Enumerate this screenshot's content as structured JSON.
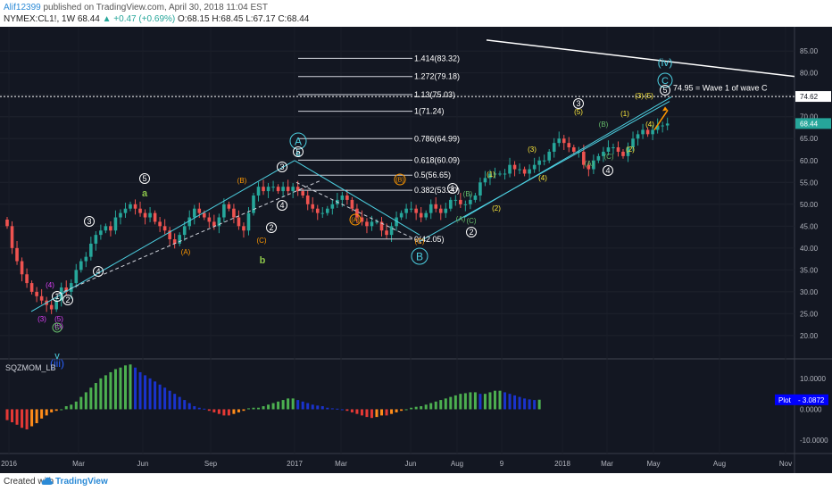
{
  "header": {
    "user": "Alif12399",
    "published_text": "published on TradingView.com, April 30, 2018 11:04 EST",
    "symbol": "NYMEX:CL1!, 1W",
    "last": "68.44",
    "change": "▲ +0.47 (+0.69%)",
    "ohlc": "O:68.15 H:68.45 L:67.17 C:68.44"
  },
  "footer": {
    "created_with": "Created with",
    "brand": "TradingView"
  },
  "colors": {
    "bg": "#131722",
    "up": "#26a69a",
    "down": "#ef5350",
    "cyan": "#4dd0e1",
    "yellow": "#ffeb3b",
    "orange": "#ff9800",
    "pink": "#e040fb",
    "green": "#66bb6a",
    "mom_lime": "#4caf50",
    "mom_green": "#1b5e20",
    "mom_red": "#e53935",
    "mom_maroon": "#8b1a1a",
    "mom_blue": "#1a33cc",
    "mom_orange": "#ff8c1a"
  },
  "chart_data": {
    "type": "candlestick",
    "price_axis": {
      "ticks": [
        "85.00",
        "80.00",
        "75.00",
        "70.00",
        "65.00",
        "60.00",
        "55.00",
        "50.00",
        "45.00",
        "40.00",
        "35.00",
        "30.00",
        "25.00",
        "20.00"
      ],
      "range": [
        15.5,
        88.5
      ]
    },
    "time_axis": {
      "labels": [
        "2016",
        "Mar",
        "Jun",
        "Sep",
        "2017",
        "Mar",
        "Jun",
        "Aug",
        "9",
        "2018",
        "Mar",
        "May",
        "Aug",
        "Nov"
      ]
    },
    "last_price_label": "68.44",
    "level_label": "74.62",
    "annotation": "74.95 = Wave 1 of wave C",
    "fib_levels": [
      {
        "label": "1.414(83.32)",
        "price": 83.32
      },
      {
        "label": "1.272(79.18)",
        "price": 79.18
      },
      {
        "label": "1.13(75.03)",
        "price": 75.03
      },
      {
        "label": "1(71.24)",
        "price": 71.24
      },
      {
        "label": "0.786(64.99)",
        "price": 64.99
      },
      {
        "label": "0.618(60.09)",
        "price": 60.09
      },
      {
        "label": "0.5(56.65)",
        "price": 56.65
      },
      {
        "label": "0.382(53.20)",
        "price": 53.2
      },
      {
        "label": "0(42.05)",
        "price": 42.05
      }
    ],
    "wave_labels": {
      "iii": "(iii)",
      "iv": "(iv)",
      "v": "v",
      "A": "A",
      "B": "B",
      "C": "C",
      "a": "a",
      "b": "b",
      "c": "c",
      "1": "1",
      "2": "2",
      "3": "3",
      "4": "4",
      "5": "5",
      "p1": "(1)",
      "p2": "(2)",
      "p3": "(3)",
      "p4": "(4)",
      "p5": "(5)",
      "pA": "(A)",
      "pB": "(B)",
      "pC": "(C)"
    },
    "indicator": {
      "name": "SQZMOM_LB",
      "ticks": [
        "10.0000",
        "0.0000",
        "-10.0000"
      ],
      "plot_label": "Plot",
      "plot_value": "3.0872",
      "range": [
        -12,
        14
      ],
      "values": [
        -3.5,
        -4.2,
        -5,
        -6,
        -6.5,
        -5.5,
        -4.5,
        -3,
        -2,
        -1,
        -0.5,
        0,
        1,
        1.5,
        2.5,
        4,
        5.5,
        7,
        8.5,
        10,
        11,
        12,
        13,
        13.5,
        14.2,
        14.5,
        13.5,
        12,
        11,
        10,
        9,
        8,
        7,
        6,
        5,
        4,
        3,
        2,
        1,
        0.5,
        0.2,
        -0.5,
        -1,
        -1.5,
        -2,
        -2,
        -1.5,
        -1,
        -0.5,
        0.3,
        0.5,
        0.5,
        1,
        1.5,
        2,
        2.5,
        3,
        3.5,
        3.5,
        3,
        2.5,
        2,
        1.5,
        1.2,
        1,
        0.5,
        0.3,
        0.2,
        0,
        -0.5,
        -1,
        -1.5,
        -2,
        -2.5,
        -2.8,
        -2.5,
        -2,
        -2,
        -1.5,
        -1,
        -0.5,
        0,
        0.5,
        0.8,
        1,
        1.5,
        2,
        2.5,
        3,
        3.5,
        4,
        4.5,
        5,
        5.2,
        5.5,
        5.5,
        5,
        5,
        5.5,
        6,
        6,
        5.5,
        5,
        4.5,
        4,
        3.5,
        3.2,
        3,
        3.1
      ]
    },
    "weekly_closes": [
      45,
      40,
      37,
      34,
      32,
      30,
      29,
      28,
      27,
      26,
      28,
      31,
      30,
      32,
      35,
      37,
      38,
      41,
      43,
      44,
      45,
      44,
      47,
      48,
      49,
      50,
      49,
      48,
      47,
      48,
      46,
      45,
      44,
      42,
      41,
      43,
      45,
      47,
      49,
      48,
      47,
      46,
      45,
      47,
      50,
      49,
      47,
      45,
      44,
      48,
      52,
      54,
      53,
      54,
      54,
      53,
      54,
      53,
      54,
      53,
      52,
      50,
      49,
      48,
      48,
      49,
      50,
      51,
      52,
      51,
      49,
      47,
      46,
      45,
      46,
      46,
      44,
      43,
      45,
      47,
      48,
      49,
      49,
      48,
      47,
      48,
      50,
      49,
      48,
      49,
      51,
      51,
      50,
      50,
      51,
      52,
      55,
      56,
      57,
      57,
      57,
      57,
      59,
      58,
      58,
      57,
      58,
      59,
      60,
      60,
      62,
      64,
      65,
      64,
      63,
      62,
      62,
      59,
      58,
      60,
      61,
      62,
      63,
      63,
      62,
      61,
      63,
      65,
      66,
      67,
      66,
      67,
      68,
      68,
      68.44
    ]
  }
}
